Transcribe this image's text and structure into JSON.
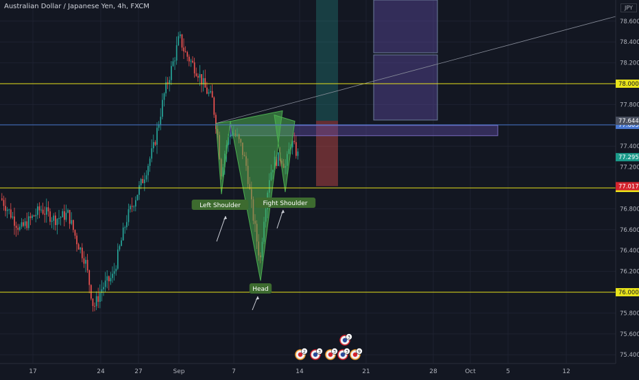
{
  "header": {
    "title": "Australian Dollar / Japanese Yen, 4h, FXCM",
    "currency": "JPY"
  },
  "chart_data": {
    "type": "candlestick",
    "x_ticks": [
      "17",
      "24",
      "27",
      "Sep",
      "7",
      "14",
      "21",
      "28",
      "Oct",
      "5",
      "12"
    ],
    "y_ticks": [
      "78.600",
      "78.400",
      "78.200",
      "77.800",
      "77.400",
      "77.200",
      "76.800",
      "76.600",
      "76.400",
      "76.200",
      "75.800",
      "75.600",
      "75.400"
    ],
    "ylim": [
      75.32,
      78.8
    ],
    "horizontal_levels": [
      {
        "value": 78.0,
        "label": "78.000",
        "color": "#e8e31a"
      },
      {
        "value": 77.0,
        "label": "77.000",
        "color": "#e8e31a"
      },
      {
        "value": 76.0,
        "label": "76.000",
        "color": "#e8e31a"
      },
      {
        "value": 77.605,
        "label": "77.605",
        "color": "#4a78d0"
      }
    ],
    "price_tags": [
      {
        "value": 77.644,
        "label": "77.644",
        "color": "#4a5060"
      },
      {
        "value": 77.295,
        "label": "77.295",
        "color": "#1b9a8a"
      },
      {
        "value": 77.017,
        "label": "77.017",
        "color": "#d4232d"
      }
    ],
    "annotations": [
      {
        "text": "Left Shoulder"
      },
      {
        "text": "Head"
      },
      {
        "text": "Fight Shoulder"
      }
    ],
    "event_badges": [
      "2",
      "3",
      "3",
      "3",
      "9",
      "3"
    ],
    "colors": {
      "up": "#26a69a",
      "down": "#ef5350",
      "level": "#e8e31a",
      "pattern": "#4caf50",
      "box": "#5b4a9e"
    }
  }
}
